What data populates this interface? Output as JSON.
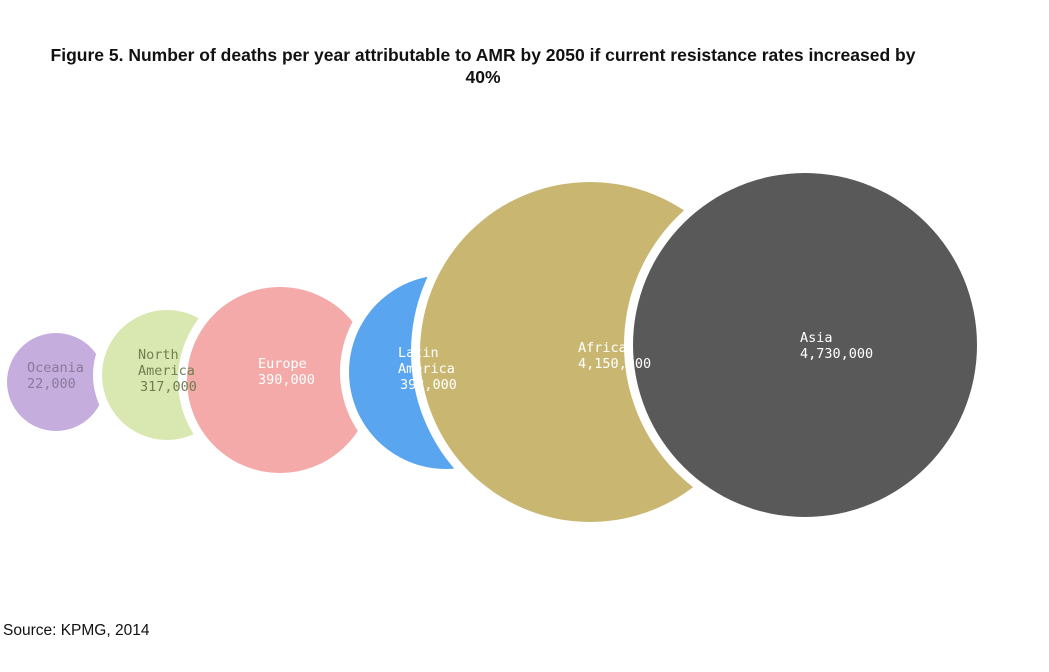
{
  "chart_data": {
    "type": "bubble",
    "title": "Figure 5. Number of deaths per year attributable to AMR by 2050 if current resistance rates increased by\n40%",
    "source": "Source: KPMG, 2014",
    "bubbles": [
      {
        "region_lines": [
          "Oceania"
        ],
        "value_label": "22,000",
        "value": 22000,
        "color": "#c5addd",
        "text_color": "#8a7a9c"
      },
      {
        "region_lines": [
          "North",
          "America"
        ],
        "value_label": "317,000",
        "value": 317000,
        "color": "#d9e8b0",
        "text_color": "#6f7f52"
      },
      {
        "region_lines": [
          "Europe"
        ],
        "value_label": "390,000",
        "value": 390000,
        "color": "#f4aaa8",
        "text_color": "#ffffff"
      },
      {
        "region_lines": [
          "Latin",
          "America"
        ],
        "value_label": "392,000",
        "value": 392000,
        "color": "#5aa5ef",
        "text_color": "#ffffff"
      },
      {
        "region_lines": [
          "Africa"
        ],
        "value_label": "4,150,000",
        "value": 4150000,
        "color": "#c9b771",
        "text_color": "#ffffff"
      },
      {
        "region_lines": [
          "Asia"
        ],
        "value_label": "4,730,000",
        "value": 4730000,
        "color": "#595959",
        "text_color": "#ffffff"
      }
    ],
    "legend": "none",
    "grid": false
  }
}
